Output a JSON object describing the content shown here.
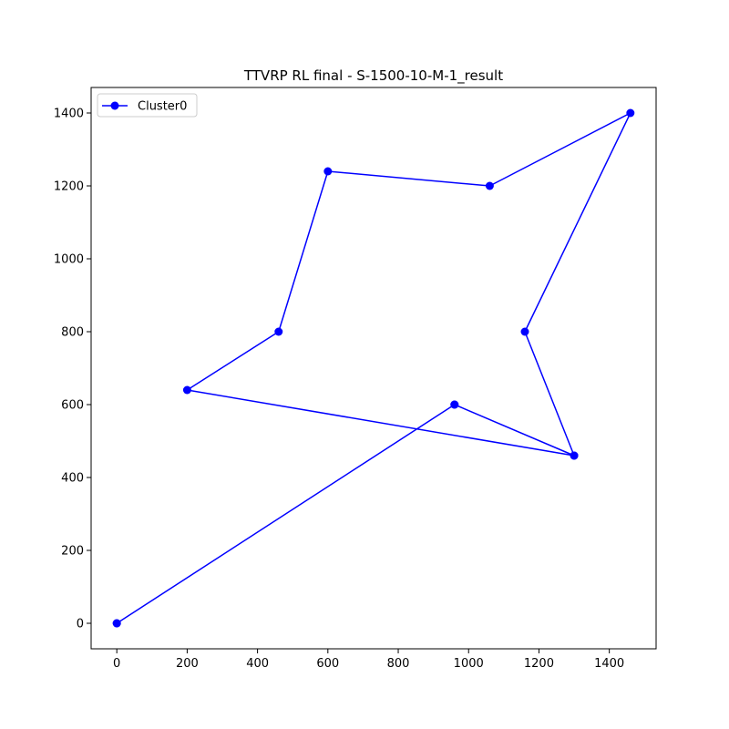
{
  "chart_data": {
    "type": "line",
    "title": "TTVRP RL final - S-1500-10-M-1_result",
    "xlabel": "",
    "ylabel": "",
    "xlim": [
      -73,
      1533
    ],
    "ylim": [
      -70,
      1470
    ],
    "xticks": [
      0,
      200,
      400,
      600,
      800,
      1000,
      1200,
      1400
    ],
    "yticks": [
      0,
      200,
      400,
      600,
      800,
      1000,
      1200,
      1400
    ],
    "grid": false,
    "legend": {
      "position": "top-left",
      "entries": [
        "Cluster0"
      ]
    },
    "series": [
      {
        "name": "Cluster0",
        "color": "#0000ff",
        "marker": "circle",
        "x": [
          0,
          960,
          1300,
          1160,
          1460,
          1060,
          600,
          460,
          200,
          1300,
          960,
          0
        ],
        "y": [
          0,
          600,
          460,
          800,
          1400,
          1200,
          1240,
          800,
          640,
          460,
          600,
          0
        ]
      }
    ]
  }
}
